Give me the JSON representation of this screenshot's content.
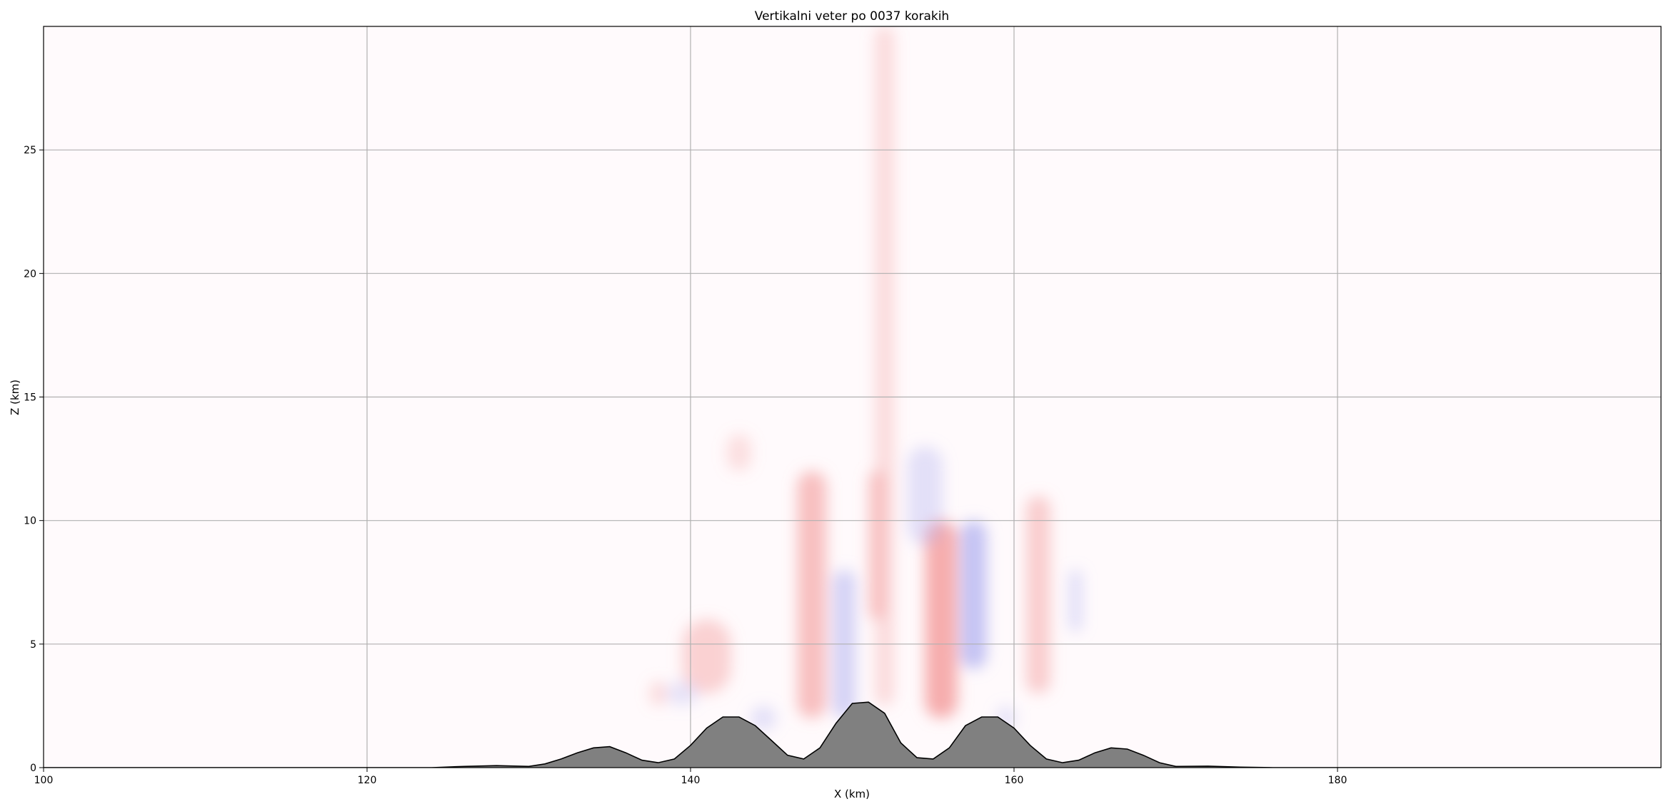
{
  "chart_data": {
    "type": "heatmap",
    "title": "Vertikalni veter po 0037 korakih",
    "xlabel": "X (km)",
    "ylabel": "Z (km)",
    "xlim": [
      100,
      200
    ],
    "ylim": [
      0,
      30
    ],
    "xticks": [
      100,
      120,
      140,
      160,
      180
    ],
    "yticks": [
      0,
      5,
      10,
      15,
      20,
      25
    ],
    "grid": true,
    "colormap": {
      "positive": "#f4a0a0",
      "negative": "#b0b0f0",
      "neutral": "#fffafc"
    },
    "terrain": {
      "fill_color": "#808080",
      "line_color": "#000000",
      "x": [
        100,
        124,
        126,
        128,
        130,
        131,
        132,
        133,
        134,
        135,
        136,
        137,
        138,
        139,
        140,
        141,
        142,
        143,
        144,
        145,
        146,
        147,
        148,
        149,
        150,
        151,
        152,
        153,
        154,
        155,
        156,
        157,
        158,
        159,
        160,
        161,
        162,
        163,
        164,
        165,
        166,
        167,
        168,
        169,
        170,
        172,
        174,
        176,
        200
      ],
      "z": [
        0,
        0,
        0.05,
        0.08,
        0.05,
        0.15,
        0.35,
        0.6,
        0.8,
        0.85,
        0.6,
        0.3,
        0.2,
        0.35,
        0.9,
        1.6,
        2.05,
        2.05,
        1.7,
        1.1,
        0.5,
        0.35,
        0.8,
        1.8,
        2.6,
        2.65,
        2.2,
        1.0,
        0.4,
        0.35,
        0.8,
        1.7,
        2.05,
        2.05,
        1.6,
        0.9,
        0.35,
        0.2,
        0.3,
        0.6,
        0.8,
        0.75,
        0.5,
        0.2,
        0.05,
        0.06,
        0.02,
        0,
        0
      ]
    },
    "features": [
      {
        "sign": "positive",
        "x": 152,
        "z_min": 2.5,
        "z_max": 30,
        "width_km": 1.2,
        "strength": 0.35
      },
      {
        "sign": "positive",
        "x": 151.5,
        "z_min": 6,
        "z_max": 12,
        "width_km": 1.0,
        "strength": 0.55
      },
      {
        "sign": "positive",
        "x": 155.5,
        "z_min": 2,
        "z_max": 10,
        "width_km": 2.0,
        "strength": 0.85
      },
      {
        "sign": "positive",
        "x": 147.5,
        "z_min": 2,
        "z_max": 12,
        "width_km": 1.8,
        "strength": 0.65
      },
      {
        "sign": "positive",
        "x": 141,
        "z_min": 3,
        "z_max": 6,
        "width_km": 3.0,
        "strength": 0.45
      },
      {
        "sign": "positive",
        "x": 143,
        "z_min": 12,
        "z_max": 13.5,
        "width_km": 1.5,
        "strength": 0.3
      },
      {
        "sign": "positive",
        "x": 161.5,
        "z_min": 3,
        "z_max": 11,
        "width_km": 1.5,
        "strength": 0.5
      },
      {
        "sign": "positive",
        "x": 138,
        "z_min": 2.5,
        "z_max": 3.5,
        "width_km": 1.0,
        "strength": 0.35
      },
      {
        "sign": "negative",
        "x": 149.5,
        "z_min": 2,
        "z_max": 8,
        "width_km": 1.4,
        "strength": 0.55
      },
      {
        "sign": "negative",
        "x": 157.5,
        "z_min": 4,
        "z_max": 10,
        "width_km": 1.6,
        "strength": 0.75
      },
      {
        "sign": "negative",
        "x": 154.5,
        "z_min": 9,
        "z_max": 13,
        "width_km": 2.2,
        "strength": 0.35
      },
      {
        "sign": "negative",
        "x": 139.5,
        "z_min": 2.5,
        "z_max": 3.5,
        "width_km": 2.0,
        "strength": 0.3
      },
      {
        "sign": "negative",
        "x": 144.5,
        "z_min": 1.5,
        "z_max": 2.5,
        "width_km": 1.6,
        "strength": 0.35
      },
      {
        "sign": "negative",
        "x": 163.8,
        "z_min": 5.5,
        "z_max": 8,
        "width_km": 0.8,
        "strength": 0.4
      },
      {
        "sign": "negative",
        "x": 159.5,
        "z_min": 1.5,
        "z_max": 2.5,
        "width_km": 1.2,
        "strength": 0.3
      }
    ]
  }
}
